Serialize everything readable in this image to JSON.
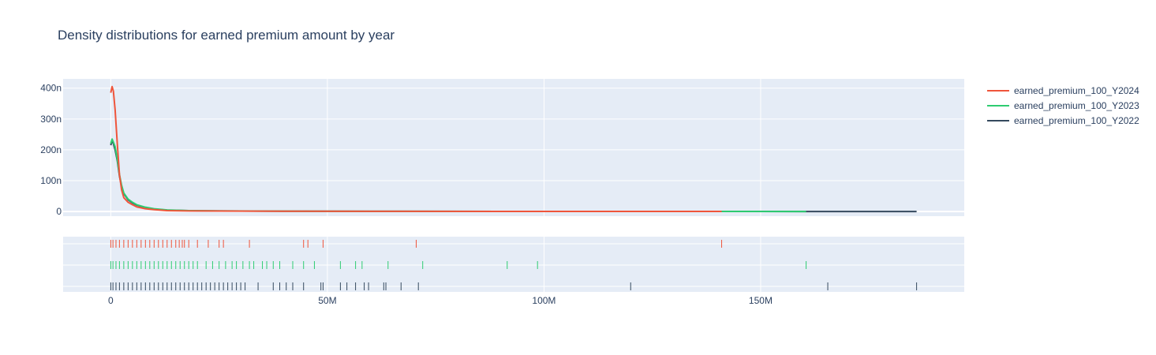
{
  "chart_data": {
    "type": "line",
    "title": "Density distributions for earned premium amount by year",
    "xlabel": "",
    "ylabel": "",
    "x_ticks": [
      {
        "value": 0,
        "label": "0"
      },
      {
        "value": 50000000,
        "label": "50M"
      },
      {
        "value": 100000000,
        "label": "100M"
      },
      {
        "value": 150000000,
        "label": "150M"
      }
    ],
    "y_ticks": [
      {
        "value": 0,
        "label": "0"
      },
      {
        "value": 1e-07,
        "label": "100n"
      },
      {
        "value": 2e-07,
        "label": "200n"
      },
      {
        "value": 3e-07,
        "label": "300n"
      },
      {
        "value": 4e-07,
        "label": "400n"
      }
    ],
    "xlim": [
      -11000000,
      197000000
    ],
    "ylim": [
      -1.5e-08,
      4.3e-07
    ],
    "grid": true,
    "legend_position": "top-right",
    "series": [
      {
        "name": "earned_premium_100_Y2024",
        "color": "#EF553B",
        "x": [
          0,
          300000,
          600000,
          1000000,
          1500000,
          2000000,
          2500000,
          3000000,
          4000000,
          5000000,
          6000000,
          8000000,
          10000000,
          13000000,
          18000000,
          25000000,
          40000000,
          60000000,
          90000000,
          120000000,
          141000000
        ],
        "y": [
          3.85e-07,
          4.05e-07,
          3.9e-07,
          3.3e-07,
          2.2e-07,
          1.2e-07,
          7e-08,
          4.5e-08,
          3e-08,
          2.2e-08,
          1.5e-08,
          9e-09,
          6e-09,
          3e-09,
          2e-09,
          1.5e-09,
          1e-09,
          7e-10,
          5e-10,
          3e-10,
          2e-10
        ],
        "rug": [
          0,
          500000,
          1200000,
          2000000,
          3000000,
          4000000,
          5000000,
          6000000,
          7000000,
          8000000,
          9000000,
          10000000,
          11000000,
          12000000,
          13000000,
          14000000,
          15000000,
          15800000,
          16500000,
          17000000,
          18000000,
          20000000,
          22500000,
          25000000,
          26000000,
          32000000,
          44500000,
          45500000,
          49000000,
          70500000,
          141000000
        ]
      },
      {
        "name": "earned_premium_100_Y2023",
        "color": "#2ECC71",
        "x": [
          0,
          300000,
          600000,
          1000000,
          1500000,
          2000000,
          2500000,
          3000000,
          4000000,
          5000000,
          6000000,
          8000000,
          10000000,
          13000000,
          18000000,
          25000000,
          40000000,
          60000000,
          90000000,
          120000000,
          140000000,
          160500000
        ],
        "y": [
          2.2e-07,
          2.35e-07,
          2.25e-07,
          2.1e-07,
          1.7e-07,
          1.2e-07,
          8.5e-08,
          6e-08,
          4e-08,
          3e-08,
          2.2e-08,
          1.4e-08,
          9e-09,
          5e-09,
          3e-09,
          2e-09,
          1.2e-09,
          8e-10,
          5e-10,
          3e-10,
          2e-10,
          1e-10
        ],
        "rug": [
          0,
          500000,
          1200000,
          2000000,
          3000000,
          4000000,
          5000000,
          6000000,
          7000000,
          8000000,
          9000000,
          10000000,
          11000000,
          12000000,
          13000000,
          14000000,
          15000000,
          16000000,
          17000000,
          18000000,
          19000000,
          20000000,
          22000000,
          23500000,
          25000000,
          26500000,
          28000000,
          29000000,
          30500000,
          32000000,
          33000000,
          35000000,
          36000000,
          37500000,
          39000000,
          42000000,
          44500000,
          47000000,
          53000000,
          56500000,
          58000000,
          64000000,
          72000000,
          91500000,
          98500000,
          160500000
        ]
      },
      {
        "name": "earned_premium_100_Y2022",
        "color": "#34495E",
        "x": [
          0,
          300000,
          600000,
          1000000,
          1500000,
          2000000,
          2500000,
          3000000,
          4000000,
          5000000,
          6000000,
          8000000,
          10000000,
          13000000,
          18000000,
          25000000,
          40000000,
          60000000,
          90000000,
          120000000,
          150000000,
          186000000
        ],
        "y": [
          2.15e-07,
          2.3e-07,
          2.2e-07,
          2e-07,
          1.65e-07,
          1.15e-07,
          8e-08,
          5.8e-08,
          3.8e-08,
          2.8e-08,
          2.1e-08,
          1.3e-08,
          8e-09,
          4.5e-09,
          2.8e-09,
          1.8e-09,
          1.1e-09,
          7e-10,
          4e-10,
          3e-10,
          2e-10,
          1e-10
        ],
        "rug": [
          0,
          500000,
          1200000,
          2000000,
          3000000,
          4000000,
          5000000,
          6000000,
          7000000,
          8000000,
          9000000,
          10000000,
          11000000,
          12000000,
          13000000,
          14000000,
          15000000,
          16000000,
          17000000,
          18000000,
          19000000,
          20000000,
          21000000,
          22000000,
          23000000,
          24000000,
          25000000,
          26000000,
          27000000,
          28000000,
          29000000,
          30000000,
          31000000,
          34000000,
          37500000,
          39000000,
          40500000,
          42000000,
          44500000,
          48500000,
          49000000,
          53000000,
          54500000,
          56500000,
          58500000,
          59500000,
          63000000,
          63500000,
          67000000,
          71000000,
          120000000,
          165500000,
          186000000
        ]
      }
    ]
  }
}
